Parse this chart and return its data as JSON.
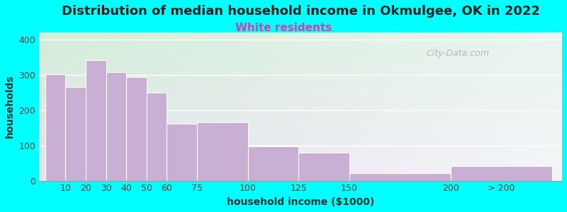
{
  "title": "Distribution of median household income in Okmulgee, OK in 2022",
  "subtitle": "White residents",
  "xlabel": "household income ($1000)",
  "ylabel": "households",
  "bar_labels": [
    "10",
    "20",
    "30",
    "40",
    "50",
    "60",
    "75",
    "100",
    "125",
    "150",
    "200",
    "> 200"
  ],
  "bar_values": [
    302,
    265,
    342,
    308,
    293,
    250,
    162,
    166,
    97,
    80,
    22,
    42
  ],
  "bar_color": "#c9afd4",
  "background_color": "#00ffff",
  "plot_bg_top_left": "#d4eed8",
  "plot_bg_top_right": "#e8f5f0",
  "plot_bg_bottom_left": "#e8e0f0",
  "plot_bg_bottom_right": "#f5f5f8",
  "ylim": [
    0,
    420
  ],
  "yticks": [
    0,
    100,
    200,
    300,
    400
  ],
  "title_fontsize": 13,
  "subtitle_fontsize": 11,
  "subtitle_color": "#cc44aa",
  "axis_label_fontsize": 10,
  "tick_fontsize": 9,
  "lefts": [
    0,
    10,
    20,
    30,
    40,
    50,
    60,
    75,
    100,
    125,
    150,
    200
  ],
  "widths": [
    10,
    10,
    10,
    10,
    10,
    10,
    15,
    25,
    25,
    25,
    50,
    50
  ],
  "tick_positions": [
    10,
    20,
    30,
    40,
    50,
    60,
    75,
    100,
    125,
    150,
    200,
    225
  ],
  "tick_labels_disp": [
    "10",
    "20",
    "30",
    "40",
    "50",
    "60",
    "75",
    "100",
    "125",
    "150",
    "200",
    "> 200"
  ],
  "xlim": [
    -3,
    255
  ],
  "watermark_text": "City-Data.com",
  "watermark_color": "#aaaaaa"
}
